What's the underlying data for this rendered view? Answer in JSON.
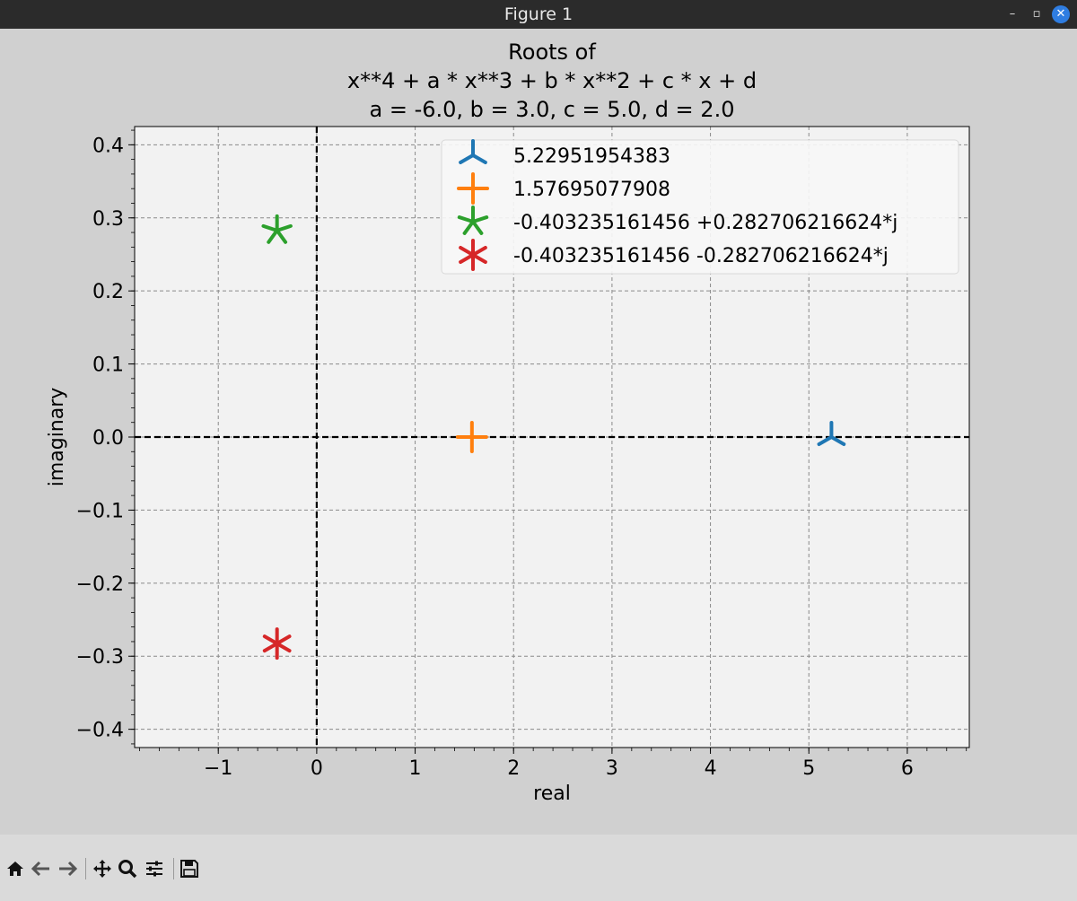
{
  "window": {
    "title": "Figure 1",
    "controls": {
      "minimize": "–",
      "maximize": "▫",
      "close": "✕"
    }
  },
  "toolbar": {
    "tools": [
      "home-icon",
      "back-icon",
      "forward-icon",
      "pan-icon",
      "zoom-icon",
      "configure-subplots-icon",
      "save-icon"
    ]
  },
  "chart_data": {
    "type": "scatter",
    "title": [
      "Roots of",
      "x**4 + a * x**3 + b * x**2 + c * x + d",
      "a = -6.0, b = 3.0, c = 5.0, d = 2.0"
    ],
    "xlabel": "real",
    "ylabel": "imaginary",
    "xlim": [
      -1.85,
      6.63
    ],
    "ylim": [
      -0.425,
      0.425
    ],
    "xticks": [
      -1,
      0,
      1,
      2,
      3,
      4,
      5,
      6
    ],
    "xtick_labels": [
      "−1",
      "0",
      "1",
      "2",
      "3",
      "4",
      "5",
      "6"
    ],
    "yticks": [
      0.4,
      0.3,
      0.2,
      0.1,
      0.0,
      -0.1,
      -0.2,
      -0.3,
      -0.4
    ],
    "ytick_labels": [
      "0.4",
      "0.3",
      "0.2",
      "0.1",
      "0.0",
      "−0.1",
      "−0.2",
      "−0.3",
      "−0.4"
    ],
    "grid": true,
    "legend_position": "top-right",
    "reference_lines": {
      "x": 0,
      "y": 0,
      "style": "dashed",
      "color": "#000000"
    },
    "series": [
      {
        "name": "5.22951954383",
        "x": 5.2295,
        "y": 0.0,
        "marker": "tri-down",
        "color": "#1f77b4"
      },
      {
        "name": "1.57695077908",
        "x": 1.577,
        "y": 0.0,
        "marker": "plus",
        "color": "#ff7f0e"
      },
      {
        "name": "-0.403235161456 +0.282706216624*j",
        "x": -0.4032,
        "y": 0.2827,
        "marker": "star",
        "color": "#2ca02c"
      },
      {
        "name": "-0.403235161456 -0.282706216624*j",
        "x": -0.4032,
        "y": -0.2827,
        "marker": "asterisk",
        "color": "#d62728"
      }
    ]
  }
}
